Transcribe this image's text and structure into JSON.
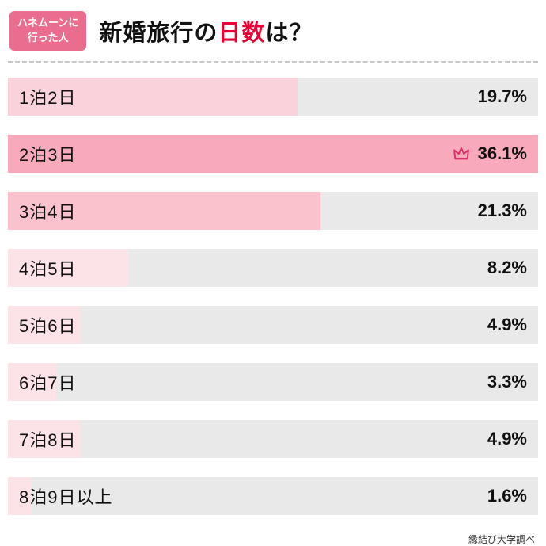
{
  "header": {
    "badge_line1": "ハネムーンに",
    "badge_line2": "行った人",
    "title_prefix": "新婚旅行の",
    "title_highlight": "日数",
    "title_suffix": "は？"
  },
  "footer": {
    "source": "縁結び大学調べ"
  },
  "colors": {
    "badge_bg": "#ea6d8e",
    "title_highlight": "#e60033",
    "crown": "#d6336c",
    "track": "#e9e9e9"
  },
  "chart_data": {
    "type": "bar",
    "orientation": "horizontal",
    "title": "新婚旅行の日数は？",
    "audience_note": "ハネムーンに行った人",
    "source": "縁結び大学調べ",
    "categories": [
      "1泊2日",
      "2泊3日",
      "3泊4日",
      "4泊5日",
      "5泊6日",
      "6泊7日",
      "7泊8日",
      "8泊9日以上"
    ],
    "values": [
      19.7,
      36.1,
      21.3,
      8.2,
      4.9,
      3.3,
      4.9,
      1.6
    ],
    "value_labels": [
      "19.7%",
      "36.1%",
      "21.3%",
      "8.2%",
      "4.9%",
      "3.3%",
      "4.9%",
      "1.6%"
    ],
    "unit": "%",
    "max_value": 36.1,
    "top_item_index": 1,
    "bar_colors": [
      "#fad2db",
      "#f8a9ba",
      "#f9c2cc",
      "#fce3e8",
      "#fce3e8",
      "#fce3e8",
      "#fce3e8",
      "#fce3e8"
    ],
    "xlim": [
      0,
      36.1
    ],
    "legend": "none",
    "grid": "off"
  }
}
